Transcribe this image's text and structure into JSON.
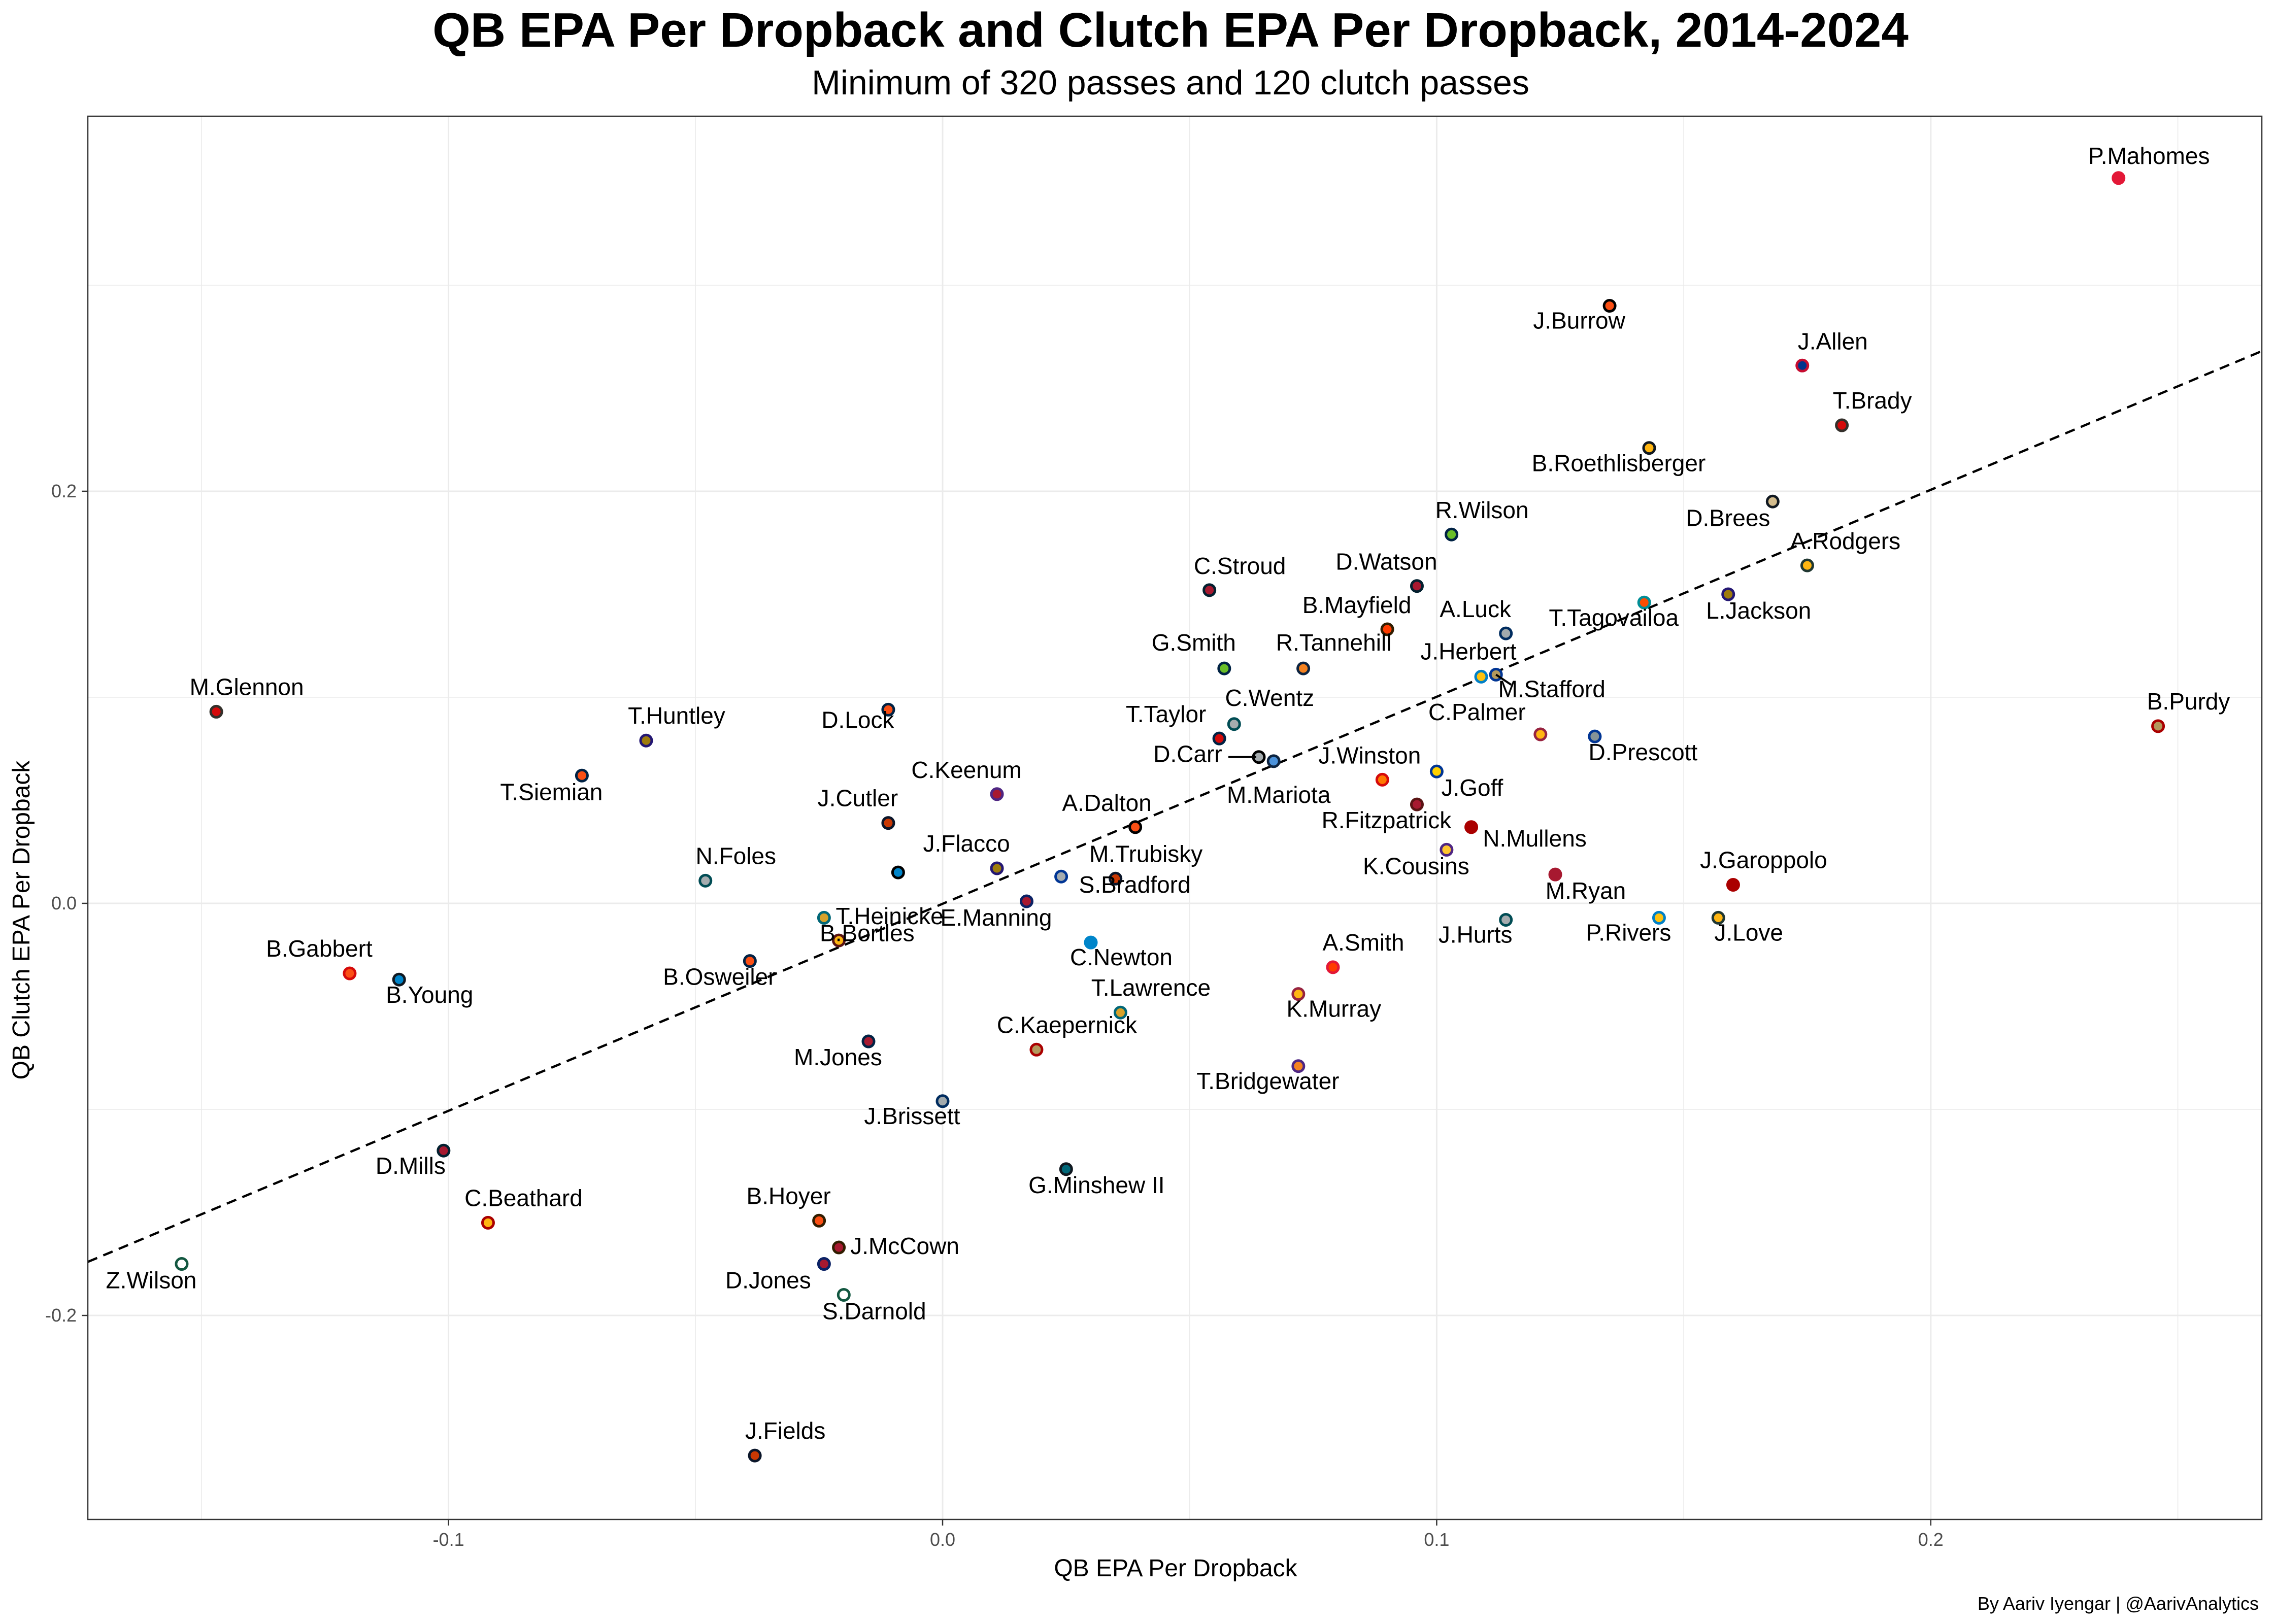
{
  "chart_data": {
    "type": "scatter",
    "title": "QB EPA Per Dropback and Clutch EPA Per Dropback, 2014-2024",
    "subtitle": "Minimum of 320 passes and 120 clutch passes",
    "xlabel": "QB EPA Per Dropback",
    "ylabel": "QB Clutch EPA Per Dropback",
    "caption": "By Aariv Iyengar | @AarivAnalytics",
    "xlim": [
      -0.173,
      0.267
    ],
    "ylim": [
      -0.299,
      0.382
    ],
    "x_ticks": [
      -0.1,
      0.0,
      0.1,
      0.2
    ],
    "x_tick_labels": [
      "-0.1",
      "0.0",
      "0.1",
      "0.2"
    ],
    "y_ticks": [
      -0.2,
      0.0,
      0.2
    ],
    "y_tick_labels": [
      "-0.2",
      "0.0",
      "0.2"
    ],
    "grid": true,
    "trend_line": {
      "style": "dashed",
      "x": [
        -0.173,
        0.267
      ],
      "y": [
        -0.174,
        0.268
      ]
    },
    "points": [
      {
        "name": "P.Mahomes",
        "x": 0.238,
        "y": 0.352,
        "color": "#E31837"
      },
      {
        "name": "J.Burrow",
        "x": 0.135,
        "y": 0.29,
        "color": "#FB4F14"
      },
      {
        "name": "J.Allen",
        "x": 0.174,
        "y": 0.261,
        "color": "#00338D"
      },
      {
        "name": "T.Brady",
        "x": 0.182,
        "y": 0.232,
        "color": "#D50A0A"
      },
      {
        "name": "B.Roethlisberger",
        "x": 0.143,
        "y": 0.221,
        "color": "#FFB612"
      },
      {
        "name": "D.Brees",
        "x": 0.168,
        "y": 0.195,
        "color": "#D3BC8D"
      },
      {
        "name": "A.Rodgers",
        "x": 0.175,
        "y": 0.164,
        "color": "#FFB612"
      },
      {
        "name": "R.Wilson",
        "x": 0.103,
        "y": 0.179,
        "color": "#69BE28"
      },
      {
        "name": "L.Jackson",
        "x": 0.159,
        "y": 0.15,
        "color": "#9E7C0C"
      },
      {
        "name": "T.Tagovailoa",
        "x": 0.142,
        "y": 0.146,
        "color": "#FC4C02"
      },
      {
        "name": "D.Watson",
        "x": 0.096,
        "y": 0.154,
        "color": "#A71930"
      },
      {
        "name": "C.Stroud",
        "x": 0.054,
        "y": 0.152,
        "color": "#A71930"
      },
      {
        "name": "B.Mayfield",
        "x": 0.09,
        "y": 0.133,
        "color": "#FF3C00"
      },
      {
        "name": "A.Luck",
        "x": 0.114,
        "y": 0.131,
        "color": "#A2AAAD"
      },
      {
        "name": "G.Smith",
        "x": 0.057,
        "y": 0.114,
        "color": "#69BE28"
      },
      {
        "name": "R.Tannehill",
        "x": 0.073,
        "y": 0.114,
        "color": "#F58220"
      },
      {
        "name": "J.Herbert",
        "x": 0.109,
        "y": 0.11,
        "color": "#FFC20E"
      },
      {
        "name": "M.Stafford",
        "x": 0.112,
        "y": 0.111,
        "color": "#B3995D"
      },
      {
        "name": "M.Glennon",
        "x": -0.147,
        "y": 0.093,
        "color": "#D50A0A"
      },
      {
        "name": "D.Lock",
        "x": -0.011,
        "y": 0.094,
        "color": "#FB4F14"
      },
      {
        "name": "T.Huntley",
        "x": -0.06,
        "y": 0.079,
        "color": "#9E7C0C"
      },
      {
        "name": "C.Wentz",
        "x": 0.059,
        "y": 0.087,
        "color": "#A5ACAF"
      },
      {
        "name": "T.Taylor",
        "x": 0.056,
        "y": 0.08,
        "color": "#D50A0A"
      },
      {
        "name": "D.Carr",
        "x": 0.064,
        "y": 0.071,
        "color": "#A5ACAF"
      },
      {
        "name": "M.Mariota",
        "x": 0.067,
        "y": 0.069,
        "color": "#4B92DB"
      },
      {
        "name": "C.Palmer",
        "x": 0.121,
        "y": 0.082,
        "color": "#FFB612"
      },
      {
        "name": "D.Prescott",
        "x": 0.132,
        "y": 0.081,
        "color": "#869397"
      },
      {
        "name": "T.Siemian",
        "x": -0.073,
        "y": 0.062,
        "color": "#FB4F14"
      },
      {
        "name": "J.Winston",
        "x": 0.089,
        "y": 0.06,
        "color": "#FF7900"
      },
      {
        "name": "J.Goff",
        "x": 0.1,
        "y": 0.064,
        "color": "#FFD100"
      },
      {
        "name": "C.Keenum",
        "x": 0.011,
        "y": 0.053,
        "color": "#A71930"
      },
      {
        "name": "R.Fitzpatrick",
        "x": 0.096,
        "y": 0.048,
        "color": "#A71930"
      },
      {
        "name": "A.Dalton",
        "x": 0.039,
        "y": 0.037,
        "color": "#FB4F14"
      },
      {
        "name": "N.Mullens",
        "x": 0.107,
        "y": 0.037,
        "color": "#AA0000"
      },
      {
        "name": "J.Cutler",
        "x": -0.011,
        "y": 0.039,
        "color": "#C83803"
      },
      {
        "name": "K.Cousins",
        "x": 0.102,
        "y": 0.026,
        "color": "#FFC62F"
      },
      {
        "name": "J.Flacco",
        "x": 0.011,
        "y": 0.017,
        "color": "#9E7C0C"
      },
      {
        "name": "N.Foles",
        "x": -0.048,
        "y": 0.011,
        "color": "#A5ACAF"
      },
      {
        "name": "J.Cutler-2",
        "x": -0.009,
        "y": 0.015,
        "color": "#0085CA"
      },
      {
        "name": "M.Trubisky",
        "x": 0.035,
        "y": 0.012,
        "color": "#C83803"
      },
      {
        "name": "S.Bradford",
        "x": 0.024,
        "y": 0.013,
        "color": "#A5ACAF"
      },
      {
        "name": "M.Ryan",
        "x": 0.124,
        "y": 0.014,
        "color": "#A71930"
      },
      {
        "name": "J.Garoppolo",
        "x": 0.16,
        "y": 0.009,
        "color": "#AA0000"
      },
      {
        "name": "B.Bortles",
        "x": -0.024,
        "y": -0.007,
        "color": "#D7A22A"
      },
      {
        "name": "E.Manning",
        "x": 0.017,
        "y": 0.001,
        "color": "#A71930"
      },
      {
        "name": "J.Hurts",
        "x": 0.114,
        "y": -0.008,
        "color": "#A5ACAF"
      },
      {
        "name": "P.Rivers",
        "x": 0.145,
        "y": -0.007,
        "color": "#FFC20E"
      },
      {
        "name": "J.Love",
        "x": 0.157,
        "y": -0.007,
        "color": "#FFB612"
      },
      {
        "name": "T.Heinicke",
        "x": -0.021,
        "y": -0.018,
        "color": "#FFB612"
      },
      {
        "name": "C.Newton",
        "x": 0.03,
        "y": -0.019,
        "color": "#0085CA"
      },
      {
        "name": "B.Osweiler",
        "x": -0.039,
        "y": -0.028,
        "color": "#FB4F14"
      },
      {
        "name": "B.Gabbert",
        "x": -0.12,
        "y": -0.034,
        "color": "#FB4F14"
      },
      {
        "name": "B.Young",
        "x": -0.11,
        "y": -0.037,
        "color": "#0085CA"
      },
      {
        "name": "A.Smith",
        "x": 0.079,
        "y": -0.031,
        "color": "#FF3C00"
      },
      {
        "name": "K.Murray",
        "x": 0.072,
        "y": -0.044,
        "color": "#FFB612"
      },
      {
        "name": "T.Lawrence",
        "x": 0.036,
        "y": -0.053,
        "color": "#D7A22A"
      },
      {
        "name": "M.Jones",
        "x": -0.015,
        "y": -0.067,
        "color": "#A71930"
      },
      {
        "name": "C.Kaepernick",
        "x": 0.019,
        "y": -0.071,
        "color": "#B3995D"
      },
      {
        "name": "T.Bridgewater",
        "x": 0.072,
        "y": -0.079,
        "color": "#F58220"
      },
      {
        "name": "J.Brissett",
        "x": 0.0,
        "y": -0.096,
        "color": "#A2AAAD"
      },
      {
        "name": "D.Mills",
        "x": -0.101,
        "y": -0.12,
        "color": "#A71930"
      },
      {
        "name": "G.Minshew II",
        "x": 0.025,
        "y": -0.129,
        "color": "#006778"
      },
      {
        "name": "C.Beathard",
        "x": -0.092,
        "y": -0.155,
        "color": "#FFB612"
      },
      {
        "name": "B.Hoyer",
        "x": -0.025,
        "y": -0.154,
        "color": "#FB4F14"
      },
      {
        "name": "J.McCown",
        "x": -0.021,
        "y": -0.167,
        "color": "#A71930"
      },
      {
        "name": "D.Jones",
        "x": -0.024,
        "y": -0.175,
        "color": "#A71930"
      },
      {
        "name": "S.Darnold",
        "x": -0.02,
        "y": -0.19,
        "color": "#FFFFFF"
      },
      {
        "name": "Z.Wilson",
        "x": -0.154,
        "y": -0.175,
        "color": "#FFFFFF"
      },
      {
        "name": "J.Fields",
        "x": -0.038,
        "y": -0.268,
        "color": "#C83803"
      },
      {
        "name": "B.Purdy",
        "x": 0.246,
        "y": 0.086,
        "color": "#B3995D"
      }
    ],
    "labels": [
      {
        "text": "P.Mahomes",
        "for": "P.Mahomes"
      },
      {
        "text": "J.Burrow",
        "for": "J.Burrow"
      },
      {
        "text": "J.Allen",
        "for": "J.Allen"
      },
      {
        "text": "T.Brady",
        "for": "T.Brady"
      },
      {
        "text": "B.Roethlisberger",
        "for": "B.Roethlisberger"
      },
      {
        "text": "D.Brees",
        "for": "D.Brees"
      },
      {
        "text": "A.Rodgers",
        "for": "A.Rodgers"
      },
      {
        "text": "R.Wilson",
        "for": "R.Wilson"
      },
      {
        "text": "L.Jackson",
        "for": "L.Jackson"
      },
      {
        "text": "T.Tagovailoa",
        "for": "T.Tagovailoa"
      },
      {
        "text": "D.Watson",
        "for": "D.Watson"
      },
      {
        "text": "C.Stroud",
        "for": "C.Stroud"
      },
      {
        "text": "B.Mayfield",
        "for": "B.Mayfield"
      },
      {
        "text": "A.Luck",
        "for": "A.Luck"
      },
      {
        "text": "G.Smith",
        "for": "G.Smith"
      },
      {
        "text": "R.Tannehill",
        "for": "R.Tannehill"
      },
      {
        "text": "J.Herbert",
        "for": "J.Herbert"
      },
      {
        "text": "M.Stafford",
        "for": "M.Stafford"
      },
      {
        "text": "M.Glennon",
        "for": "M.Glennon"
      },
      {
        "text": "D.Lock",
        "for": "D.Lock"
      },
      {
        "text": "T.Huntley",
        "for": "T.Huntley"
      },
      {
        "text": "C.Wentz",
        "for": "C.Wentz"
      },
      {
        "text": "T.Taylor",
        "for": "T.Taylor"
      },
      {
        "text": "D.Carr",
        "for": "D.Carr"
      },
      {
        "text": "M.Mariota",
        "for": "M.Mariota"
      },
      {
        "text": "C.Palmer",
        "for": "C.Palmer"
      },
      {
        "text": "D.Prescott",
        "for": "D.Prescott"
      },
      {
        "text": "T.Siemian",
        "for": "T.Siemian"
      },
      {
        "text": "J.Winston",
        "for": "J.Winston"
      },
      {
        "text": "J.Goff",
        "for": "J.Goff"
      },
      {
        "text": "C.Keenum",
        "for": "C.Keenum"
      },
      {
        "text": "R.Fitzpatrick",
        "for": "R.Fitzpatrick"
      },
      {
        "text": "A.Dalton",
        "for": "A.Dalton"
      },
      {
        "text": "N.Mullens",
        "for": "N.Mullens"
      },
      {
        "text": "J.Cutler",
        "for": "J.Cutler"
      },
      {
        "text": "K.Cousins",
        "for": "K.Cousins"
      },
      {
        "text": "J.Flacco",
        "for": "J.Flacco"
      },
      {
        "text": "N.Foles",
        "for": "N.Foles"
      },
      {
        "text": "M.Trubisky",
        "for": "M.Trubisky"
      },
      {
        "text": "S.Bradford",
        "for": "S.Bradford"
      },
      {
        "text": "M.Ryan",
        "for": "M.Ryan"
      },
      {
        "text": "J.Garoppolo",
        "for": "J.Garoppolo"
      },
      {
        "text": "B.Bortles",
        "for": "B.Bortles"
      },
      {
        "text": "E.Manning",
        "for": "E.Manning"
      },
      {
        "text": "J.Hurts",
        "for": "J.Hurts"
      },
      {
        "text": "P.Rivers",
        "for": "P.Rivers"
      },
      {
        "text": "J.Love",
        "for": "J.Love"
      },
      {
        "text": "T.Heinicke",
        "for": "T.Heinicke"
      },
      {
        "text": "C.Newton",
        "for": "C.Newton"
      },
      {
        "text": "B.Osweiler",
        "for": "B.Osweiler"
      },
      {
        "text": "B.Gabbert",
        "for": "B.Gabbert"
      },
      {
        "text": "B.Young",
        "for": "B.Young"
      },
      {
        "text": "A.Smith",
        "for": "A.Smith"
      },
      {
        "text": "K.Murray",
        "for": "K.Murray"
      },
      {
        "text": "T.Lawrence",
        "for": "T.Lawrence"
      },
      {
        "text": "M.Jones",
        "for": "M.Jones"
      },
      {
        "text": "C.Kaepernick",
        "for": "C.Kaepernick"
      },
      {
        "text": "T.Bridgewater",
        "for": "T.Bridgewater"
      },
      {
        "text": "J.Brissett",
        "for": "J.Brissett"
      },
      {
        "text": "D.Mills",
        "for": "D.Mills"
      },
      {
        "text": "G.Minshew II",
        "for": "G.Minshew II"
      },
      {
        "text": "C.Beathard",
        "for": "C.Beathard"
      },
      {
        "text": "B.Hoyer",
        "for": "B.Hoyer"
      },
      {
        "text": "J.McCown",
        "for": "J.McCown"
      },
      {
        "text": "D.Jones",
        "for": "D.Jones"
      },
      {
        "text": "S.Darnold",
        "for": "S.Darnold"
      },
      {
        "text": "Z.Wilson",
        "for": "Z.Wilson"
      },
      {
        "text": "J.Fields",
        "for": "J.Fields"
      },
      {
        "text": "B.Purdy",
        "for": "B.Purdy"
      }
    ],
    "outline_colors": {
      "P.Mahomes": "#E31837",
      "J.Burrow": "#000000",
      "J.Allen": "#C60C30",
      "T.Brady": "#34302B",
      "B.Roethlisberger": "#101820",
      "D.Brees": "#101820",
      "A.Rodgers": "#203731",
      "R.Wilson": "#002244",
      "L.Jackson": "#241773",
      "T.Tagovailoa": "#008E97",
      "D.Watson": "#03202F",
      "C.Stroud": "#03202F",
      "B.Mayfield": "#311D00",
      "A.Luck": "#002C5F",
      "G.Smith": "#002244",
      "R.Tannehill": "#0C2340",
      "J.Herbert": "#0080C6",
      "M.Stafford": "#003594",
      "M.Glennon": "#34302B",
      "D.Lock": "#002244",
      "T.Huntley": "#241773",
      "C.Wentz": "#004C54",
      "T.Taylor": "#002244",
      "D.Carr": "#000000",
      "M.Mariota": "#0C2340",
      "C.Palmer": "#97233F",
      "D.Prescott": "#003594",
      "T.Siemian": "#002244",
      "J.Winston": "#D50A0A",
      "J.Goff": "#003594",
      "C.Keenum": "#4F2683",
      "R.Fitzpatrick": "#5A1414",
      "A.Dalton": "#000000",
      "N.Mullens": "#AA0000",
      "J.Cutler": "#0B162A",
      "K.Cousins": "#4F2683",
      "J.Flacco": "#241773",
      "N.Foles": "#004C54",
      "M.Trubisky": "#0B162A",
      "S.Bradford": "#003594",
      "M.Ryan": "#A71930",
      "J.Garoppolo": "#AA0000",
      "B.Bortles": "#006778",
      "E.Manning": "#0B2265",
      "J.Hurts": "#004C54",
      "P.Rivers": "#0080C6",
      "J.Love": "#203731",
      "T.Heinicke": "#5A1414",
      "C.Newton": "#0085CA",
      "B.Osweiler": "#002244",
      "B.Gabbert": "#D50A0A",
      "B.Young": "#101820",
      "A.Smith": "#E31837",
      "K.Murray": "#97233F",
      "T.Lawrence": "#006778",
      "M.Jones": "#002244",
      "C.Kaepernick": "#AA0000",
      "T.Bridgewater": "#4F2683",
      "J.Brissett": "#002C5F",
      "D.Mills": "#03202F",
      "G.Minshew II": "#101820",
      "C.Beathard": "#AA0000",
      "B.Hoyer": "#311D00",
      "J.McCown": "#311D00",
      "D.Jones": "#0B2265",
      "S.Darnold": "#125740",
      "Z.Wilson": "#125740",
      "J.Fields": "#0B162A",
      "B.Purdy": "#AA0000"
    }
  }
}
